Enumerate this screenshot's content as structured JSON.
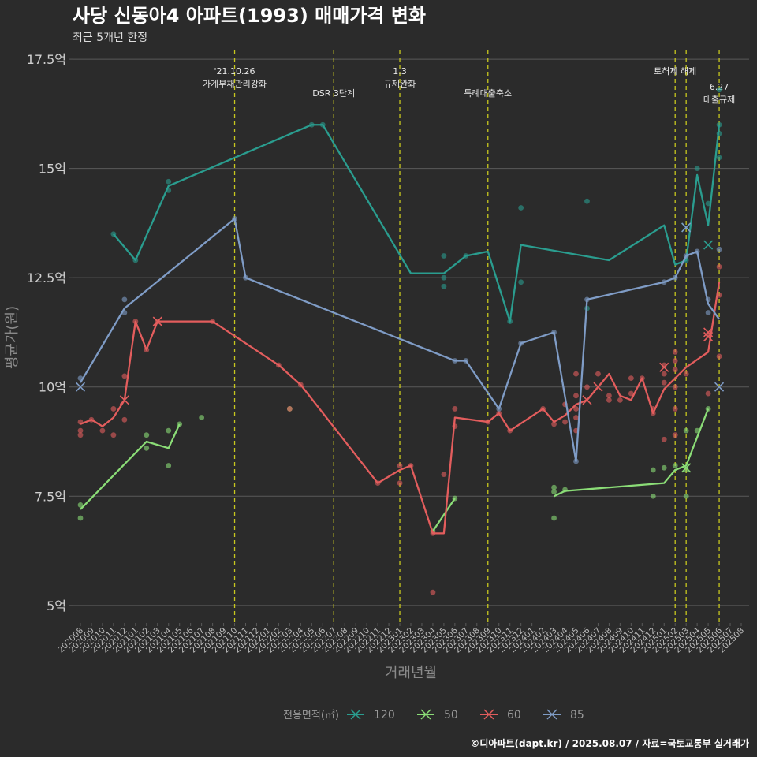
{
  "title": "사당 신동아4 아파트(1993) 매매가격 변화",
  "subtitle": "최근 5개년 한정",
  "caption": "©디아파트(dapt.kr) / 2025.08.07 / 자료=국토교통부 실거래가",
  "colors": {
    "background": "#2b2b2b",
    "grid": "#5a5a5a",
    "event_line": "#c8c81e",
    "120": "#2a9d8f",
    "50": "#8bdd77",
    "60": "#e35d5d",
    "85": "#7f9cc6"
  },
  "chart_data": {
    "type": "line",
    "title": "사당 신동아4 아파트(1993) 매매가격 변화",
    "xlabel": "거래년월",
    "ylabel": "평균가(원)",
    "ylim": [
      4.6,
      17.7
    ],
    "yticks": [
      5,
      7.5,
      10,
      12.5,
      15,
      17.5
    ],
    "ytick_labels": [
      "5억",
      "7.5억",
      "10억",
      "12.5억",
      "15억",
      "17.5억"
    ],
    "categories": [
      "202008",
      "202009",
      "202010",
      "202011",
      "202012",
      "202101",
      "202102",
      "202103",
      "202104",
      "202105",
      "202106",
      "202107",
      "202108",
      "202109",
      "202110",
      "202111",
      "202112",
      "202201",
      "202202",
      "202203",
      "202204",
      "202205",
      "202206",
      "202207",
      "202208",
      "202209",
      "202210",
      "202211",
      "202212",
      "202301",
      "202302",
      "202303",
      "202304",
      "202305",
      "202306",
      "202307",
      "202308",
      "202309",
      "202310",
      "202311",
      "202312",
      "202401",
      "202402",
      "202403",
      "202404",
      "202405",
      "202406",
      "202407",
      "202408",
      "202409",
      "202410",
      "202411",
      "202412",
      "202501",
      "202502",
      "202503",
      "202504",
      "202505",
      "202506",
      "202507",
      "202508"
    ],
    "legend_title": "전용면적(㎡)",
    "events": [
      {
        "x": 14,
        "label": [
          "'21.10.26",
          "가계부채관리강화"
        ],
        "pos": "high"
      },
      {
        "x": 23,
        "label": [
          "DSR 3단계"
        ],
        "pos": "low"
      },
      {
        "x": 29,
        "label": [
          "1.3",
          "규제완화"
        ],
        "pos": "high"
      },
      {
        "x": 37,
        "label": [
          "특례대출축소"
        ],
        "pos": "low"
      },
      {
        "x": 54,
        "label": [
          "토허제 해제"
        ],
        "pos": "high"
      },
      {
        "x": 55,
        "label": [],
        "pos": "none"
      },
      {
        "x": 58,
        "label": [
          "6.27",
          "대출규제"
        ],
        "pos": "mid"
      }
    ],
    "series": [
      {
        "name": "120",
        "line": [
          [
            3,
            13.5
          ],
          [
            5,
            12.9
          ],
          [
            8,
            14.6
          ],
          [
            21,
            16.0
          ],
          [
            22,
            16.0
          ],
          [
            30,
            12.6
          ],
          [
            33,
            12.6
          ],
          [
            35,
            13.0
          ],
          [
            37,
            13.1
          ],
          [
            39,
            11.5
          ],
          [
            40,
            13.25
          ],
          [
            48,
            12.9
          ],
          [
            53,
            13.7
          ],
          [
            54,
            12.8
          ],
          [
            55,
            12.9
          ],
          [
            56,
            14.85
          ],
          [
            57,
            13.7
          ],
          [
            58,
            16.0
          ]
        ],
        "points": [
          [
            3,
            13.5
          ],
          [
            5,
            12.9
          ],
          [
            8,
            14.5
          ],
          [
            8,
            14.7
          ],
          [
            21,
            16.0
          ],
          [
            22,
            16.0
          ],
          [
            33,
            13.0
          ],
          [
            33,
            12.5
          ],
          [
            33,
            12.3
          ],
          [
            35,
            13.0
          ],
          [
            39,
            11.5
          ],
          [
            40,
            14.1
          ],
          [
            40,
            12.4
          ],
          [
            46,
            14.25
          ],
          [
            46,
            11.8
          ],
          [
            55,
            12.9
          ],
          [
            56,
            15.0
          ],
          [
            57,
            14.2
          ],
          [
            58,
            16.0
          ],
          [
            58,
            15.8
          ],
          [
            58,
            15.25
          ],
          [
            58,
            16.8
          ]
        ],
        "last": [
          [
            55,
            13.65
          ],
          [
            57,
            13.25
          ]
        ]
      },
      {
        "name": "50",
        "line": [
          [
            0,
            7.2
          ],
          [
            6,
            8.75
          ],
          [
            8,
            8.6
          ],
          [
            9,
            9.15
          ]
        ],
        "line2": [
          [
            32,
            6.7
          ],
          [
            34,
            7.45
          ]
        ],
        "line3": [
          [
            43,
            7.5
          ],
          [
            44,
            7.62
          ],
          [
            53,
            7.8
          ],
          [
            54,
            8.1
          ],
          [
            55,
            8.2
          ],
          [
            57,
            9.5
          ]
        ],
        "points": [
          [
            0,
            7.3
          ],
          [
            0,
            7.0
          ],
          [
            6,
            8.9
          ],
          [
            6,
            8.6
          ],
          [
            8,
            9.0
          ],
          [
            8,
            8.2
          ],
          [
            9,
            9.15
          ],
          [
            11,
            9.3
          ],
          [
            19,
            9.5
          ],
          [
            32,
            6.7
          ],
          [
            34,
            7.45
          ],
          [
            43,
            7.7
          ],
          [
            43,
            7.6
          ],
          [
            43,
            7.0
          ],
          [
            44,
            7.65
          ],
          [
            52,
            8.1
          ],
          [
            52,
            7.5
          ],
          [
            53,
            8.15
          ],
          [
            54,
            8.2
          ],
          [
            55,
            8.1
          ],
          [
            55,
            7.5
          ],
          [
            55,
            9.0
          ],
          [
            56,
            9.0
          ],
          [
            57,
            9.5
          ]
        ],
        "last": [
          [
            55,
            8.15
          ]
        ]
      },
      {
        "name": "60",
        "line": [
          [
            0,
            9.15
          ],
          [
            1,
            9.25
          ],
          [
            2,
            9.1
          ],
          [
            3,
            9.3
          ],
          [
            4,
            9.7
          ],
          [
            5,
            11.5
          ],
          [
            6,
            10.85
          ],
          [
            7,
            11.5
          ],
          [
            12,
            11.5
          ],
          [
            18,
            10.5
          ],
          [
            20,
            10.05
          ],
          [
            27,
            7.8
          ],
          [
            29,
            8.1
          ],
          [
            30,
            8.2
          ],
          [
            32,
            6.65
          ],
          [
            33,
            6.65
          ],
          [
            34,
            9.3
          ],
          [
            37,
            9.2
          ],
          [
            38,
            9.4
          ],
          [
            39,
            9.0
          ],
          [
            42,
            9.5
          ],
          [
            43,
            9.2
          ],
          [
            44,
            9.35
          ],
          [
            45,
            9.6
          ],
          [
            46,
            9.7
          ],
          [
            47,
            10.0
          ],
          [
            48,
            10.3
          ],
          [
            49,
            9.8
          ],
          [
            50,
            9.7
          ],
          [
            51,
            10.2
          ],
          [
            52,
            9.4
          ],
          [
            53,
            9.95
          ],
          [
            55,
            10.45
          ],
          [
            57,
            10.8
          ],
          [
            58,
            12.4
          ]
        ],
        "points": [
          [
            0,
            9.2
          ],
          [
            0,
            9.0
          ],
          [
            0,
            8.9
          ],
          [
            1,
            9.25
          ],
          [
            2,
            9.0
          ],
          [
            3,
            9.5
          ],
          [
            3,
            8.9
          ],
          [
            4,
            10.25
          ],
          [
            4,
            9.25
          ],
          [
            5,
            11.5
          ],
          [
            6,
            10.85
          ],
          [
            7,
            11.5
          ],
          [
            12,
            11.5
          ],
          [
            18,
            10.5
          ],
          [
            19,
            9.5
          ],
          [
            20,
            10.05
          ],
          [
            27,
            7.8
          ],
          [
            29,
            8.2
          ],
          [
            29,
            7.8
          ],
          [
            30,
            8.2
          ],
          [
            32,
            6.65
          ],
          [
            32,
            5.3
          ],
          [
            33,
            8.0
          ],
          [
            34,
            9.5
          ],
          [
            34,
            9.1
          ],
          [
            37,
            9.2
          ],
          [
            38,
            9.4
          ],
          [
            39,
            9.0
          ],
          [
            42,
            9.5
          ],
          [
            43,
            9.15
          ],
          [
            44,
            9.6
          ],
          [
            44,
            9.2
          ],
          [
            45,
            10.3
          ],
          [
            45,
            9.8
          ],
          [
            45,
            9.5
          ],
          [
            45,
            9.3
          ],
          [
            45,
            9.0
          ],
          [
            46,
            10.0
          ],
          [
            47,
            10.3
          ],
          [
            48,
            9.8
          ],
          [
            48,
            9.7
          ],
          [
            49,
            9.7
          ],
          [
            50,
            9.85
          ],
          [
            50,
            10.2
          ],
          [
            51,
            10.2
          ],
          [
            52,
            9.5
          ],
          [
            52,
            9.4
          ],
          [
            53,
            8.8
          ],
          [
            53,
            10.5
          ],
          [
            53,
            10.3
          ],
          [
            53,
            10.1
          ],
          [
            54,
            10.8
          ],
          [
            54,
            10.6
          ],
          [
            54,
            10.4
          ],
          [
            54,
            10.0
          ],
          [
            54,
            9.5
          ],
          [
            54,
            8.9
          ],
          [
            55,
            10.3
          ],
          [
            57,
            9.85
          ],
          [
            57,
            11.2
          ],
          [
            58,
            12.75
          ],
          [
            58,
            12.1
          ],
          [
            58,
            10.7
          ]
        ],
        "last": [
          [
            4,
            9.7
          ],
          [
            7,
            11.5
          ],
          [
            46,
            9.7
          ],
          [
            47,
            10.0
          ],
          [
            53,
            10.45
          ],
          [
            57,
            11.25
          ],
          [
            57,
            11.15
          ]
        ]
      },
      {
        "name": "85",
        "line": [
          [
            0,
            10.1
          ],
          [
            4,
            11.8
          ],
          [
            14,
            13.85
          ],
          [
            15,
            12.5
          ],
          [
            34,
            10.6
          ],
          [
            35,
            10.6
          ],
          [
            38,
            9.5
          ],
          [
            40,
            11.0
          ],
          [
            43,
            11.25
          ],
          [
            45,
            8.3
          ],
          [
            46,
            12.0
          ],
          [
            53,
            12.4
          ],
          [
            54,
            12.5
          ],
          [
            55,
            13.0
          ],
          [
            56,
            13.1
          ],
          [
            57,
            11.9
          ],
          [
            58,
            11.55
          ]
        ],
        "points": [
          [
            0,
            10.2
          ],
          [
            4,
            12.0
          ],
          [
            4,
            11.7
          ],
          [
            14,
            13.85
          ],
          [
            15,
            12.5
          ],
          [
            34,
            10.6
          ],
          [
            35,
            10.6
          ],
          [
            38,
            9.5
          ],
          [
            40,
            11.0
          ],
          [
            43,
            11.25
          ],
          [
            45,
            8.3
          ],
          [
            46,
            12.0
          ],
          [
            53,
            12.4
          ],
          [
            54,
            12.5
          ],
          [
            55,
            13.0
          ],
          [
            56,
            13.1
          ],
          [
            57,
            12.0
          ],
          [
            57,
            11.7
          ],
          [
            58,
            13.15
          ]
        ],
        "last": [
          [
            0,
            10.0
          ],
          [
            55,
            13.65
          ],
          [
            58,
            10.0
          ]
        ]
      }
    ],
    "legend": [
      {
        "name": "120",
        "label": "120"
      },
      {
        "name": "50",
        "label": "50"
      },
      {
        "name": "60",
        "label": "60"
      },
      {
        "name": "85",
        "label": "85"
      }
    ]
  }
}
